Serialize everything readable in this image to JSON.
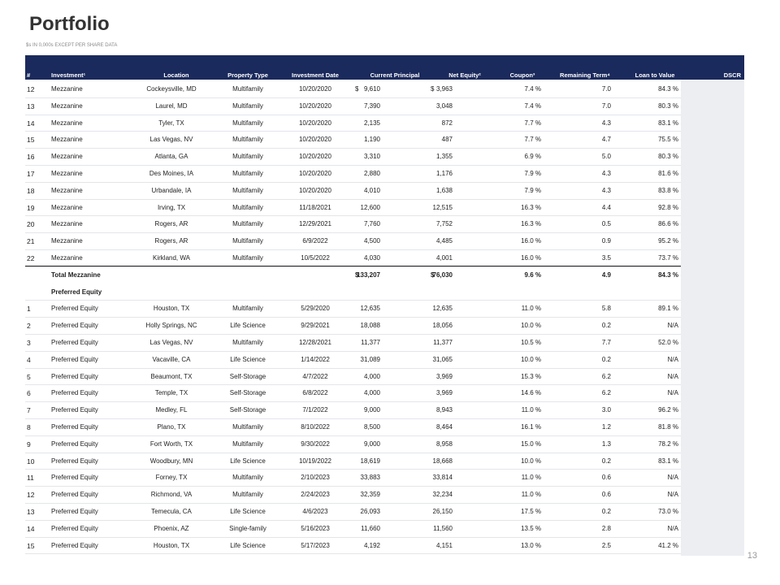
{
  "header": {
    "title": "Portfolio",
    "subtitle": "$s IN 0,000s EXCEPT PER SHARE DATA"
  },
  "table": {
    "columns": [
      "#",
      "Investment¹",
      "Location",
      "Property Type",
      "Investment Date",
      "Current Principal",
      "Net Equity²",
      "Coupon³",
      "Remaining Term⁴",
      "Loan to Value",
      "DSCR"
    ],
    "rows": [
      {
        "num": "12",
        "investment": "Mezzanine",
        "location": "Cockeysville, MD",
        "type": "Multifamily",
        "date": "10/20/2020",
        "principal_currency": "$",
        "principal": "9,610",
        "equity_currency": "$",
        "equity": "3,963",
        "coupon": "7.4 %",
        "term": "7.0",
        "ltv": "84.3 %"
      },
      {
        "num": "13",
        "investment": "Mezzanine",
        "location": "Laurel, MD",
        "type": "Multifamily",
        "date": "10/20/2020",
        "principal": "7,390",
        "equity": "3,048",
        "coupon": "7.4 %",
        "term": "7.0",
        "ltv": "80.3 %"
      },
      {
        "num": "14",
        "investment": "Mezzanine",
        "location": "Tyler, TX",
        "type": "Multifamily",
        "date": "10/20/2020",
        "principal": "2,135",
        "equity": "872",
        "coupon": "7.7 %",
        "term": "4.3",
        "ltv": "83.1 %"
      },
      {
        "num": "15",
        "investment": "Mezzanine",
        "location": "Las Vegas, NV",
        "type": "Multifamily",
        "date": "10/20/2020",
        "principal": "1,190",
        "equity": "487",
        "coupon": "7.7 %",
        "term": "4.7",
        "ltv": "75.5 %"
      },
      {
        "num": "16",
        "investment": "Mezzanine",
        "location": "Atlanta, GA",
        "type": "Multifamily",
        "date": "10/20/2020",
        "principal": "3,310",
        "equity": "1,355",
        "coupon": "6.9 %",
        "term": "5.0",
        "ltv": "80.3 %"
      },
      {
        "num": "17",
        "investment": "Mezzanine",
        "location": "Des Moines, IA",
        "type": "Multifamily",
        "date": "10/20/2020",
        "principal": "2,880",
        "equity": "1,176",
        "coupon": "7.9 %",
        "term": "4.3",
        "ltv": "81.6 %"
      },
      {
        "num": "18",
        "investment": "Mezzanine",
        "location": "Urbandale, IA",
        "type": "Multifamily",
        "date": "10/20/2020",
        "principal": "4,010",
        "equity": "1,638",
        "coupon": "7.9 %",
        "term": "4.3",
        "ltv": "83.8 %"
      },
      {
        "num": "19",
        "investment": "Mezzanine",
        "location": "Irving, TX",
        "type": "Multifamily",
        "date": "11/18/2021",
        "principal": "12,600",
        "equity": "12,515",
        "coupon": "16.3 %",
        "term": "4.4",
        "ltv": "92.8 %"
      },
      {
        "num": "20",
        "investment": "Mezzanine",
        "location": "Rogers, AR",
        "type": "Multifamily",
        "date": "12/29/2021",
        "principal": "7,760",
        "equity": "7,752",
        "coupon": "16.3 %",
        "term": "0.5",
        "ltv": "86.6 %"
      },
      {
        "num": "21",
        "investment": "Mezzanine",
        "location": "Rogers, AR",
        "type": "Multifamily",
        "date": "6/9/2022",
        "principal": "4,500",
        "equity": "4,485",
        "coupon": "16.0 %",
        "term": "0.9",
        "ltv": "95.2 %"
      },
      {
        "num": "22",
        "investment": "Mezzanine",
        "location": "Kirkland, WA",
        "type": "Multifamily",
        "date": "10/5/2022",
        "principal": "4,030",
        "equity": "4,001",
        "coupon": "16.0 %",
        "term": "3.5",
        "ltv": "73.7 %"
      },
      {
        "total": true,
        "investment": "Total Mezzanine",
        "principal_currency": "$",
        "principal": "133,207",
        "equity_currency": "$",
        "equity": "76,030",
        "coupon": "9.6 %",
        "term": "4.9",
        "ltv": "84.3 %"
      },
      {
        "section": "Preferred Equity"
      },
      {
        "num": "1",
        "investment": "Preferred Equity",
        "location": "Houston, TX",
        "type": "Multifamily",
        "date": "5/29/2020",
        "principal": "12,635",
        "equity": "12,635",
        "coupon": "11.0 %",
        "term": "5.8",
        "ltv": "89.1 %"
      },
      {
        "num": "2",
        "investment": "Preferred Equity",
        "location": "Holly Springs, NC",
        "type": "Life Science",
        "date": "9/29/2021",
        "principal": "18,088",
        "equity": "18,056",
        "coupon": "10.0 %",
        "term": "0.2",
        "ltv": "N/A"
      },
      {
        "num": "3",
        "investment": "Preferred Equity",
        "location": "Las Vegas, NV",
        "type": "Multifamily",
        "date": "12/28/2021",
        "principal": "11,377",
        "equity": "11,377",
        "coupon": "10.5 %",
        "term": "7.7",
        "ltv": "52.0 %"
      },
      {
        "num": "4",
        "investment": "Preferred Equity",
        "location": "Vacaville, CA",
        "type": "Life Science",
        "date": "1/14/2022",
        "principal": "31,089",
        "equity": "31,065",
        "coupon": "10.0 %",
        "term": "0.2",
        "ltv": "N/A"
      },
      {
        "num": "5",
        "investment": "Preferred Equity",
        "location": "Beaumont, TX",
        "type": "Self-Storage",
        "date": "4/7/2022",
        "principal": "4,000",
        "equity": "3,969",
        "coupon": "15.3 %",
        "term": "6.2",
        "ltv": "N/A"
      },
      {
        "num": "6",
        "investment": "Preferred Equity",
        "location": "Temple, TX",
        "type": "Self-Storage",
        "date": "6/8/2022",
        "principal": "4,000",
        "equity": "3,969",
        "coupon": "14.6 %",
        "term": "6.2",
        "ltv": "N/A"
      },
      {
        "num": "7",
        "investment": "Preferred Equity",
        "location": "Medley, FL",
        "type": "Self-Storage",
        "date": "7/1/2022",
        "principal": "9,000",
        "equity": "8,943",
        "coupon": "11.0 %",
        "term": "3.0",
        "ltv": "96.2 %"
      },
      {
        "num": "8",
        "investment": "Preferred Equity",
        "location": "Plano, TX",
        "type": "Multifamily",
        "date": "8/10/2022",
        "principal": "8,500",
        "equity": "8,464",
        "coupon": "16.1 %",
        "term": "1.2",
        "ltv": "81.8 %"
      },
      {
        "num": "9",
        "investment": "Preferred Equity",
        "location": "Fort Worth, TX",
        "type": "Multifamily",
        "date": "9/30/2022",
        "principal": "9,000",
        "equity": "8,958",
        "coupon": "15.0 %",
        "term": "1.3",
        "ltv": "78.2 %"
      },
      {
        "num": "10",
        "investment": "Preferred Equity",
        "location": "Woodbury, MN",
        "type": "Life Science",
        "date": "10/19/2022",
        "principal": "18,619",
        "equity": "18,668",
        "coupon": "10.0 %",
        "term": "0.2",
        "ltv": "83.1 %"
      },
      {
        "num": "11",
        "investment": "Preferred Equity",
        "location": "Forney, TX",
        "type": "Multifamily",
        "date": "2/10/2023",
        "principal": "33,883",
        "equity": "33,814",
        "coupon": "11.0 %",
        "term": "0.6",
        "ltv": "N/A"
      },
      {
        "num": "12",
        "investment": "Preferred Equity",
        "location": "Richmond, VA",
        "type": "Multifamily",
        "date": "2/24/2023",
        "principal": "32,359",
        "equity": "32,234",
        "coupon": "11.0 %",
        "term": "0.6",
        "ltv": "N/A"
      },
      {
        "num": "13",
        "investment": "Preferred Equity",
        "location": "Temecula, CA",
        "type": "Life Science",
        "date": "4/6/2023",
        "principal": "26,093",
        "equity": "26,150",
        "coupon": "17.5 %",
        "term": "0.2",
        "ltv": "73.0 %"
      },
      {
        "num": "14",
        "investment": "Preferred Equity",
        "location": "Phoenix, AZ",
        "type": "Single-family",
        "date": "5/16/2023",
        "principal": "11,660",
        "equity": "11,560",
        "coupon": "13.5 %",
        "term": "2.8",
        "ltv": "N/A"
      },
      {
        "num": "15",
        "investment": "Preferred Equity",
        "location": "Houston, TX",
        "type": "Life Science",
        "date": "5/17/2023",
        "principal": "4,192",
        "equity": "4,151",
        "coupon": "13.0 %",
        "term": "2.5",
        "ltv": "41.2 %"
      }
    ]
  },
  "page_number": "13"
}
